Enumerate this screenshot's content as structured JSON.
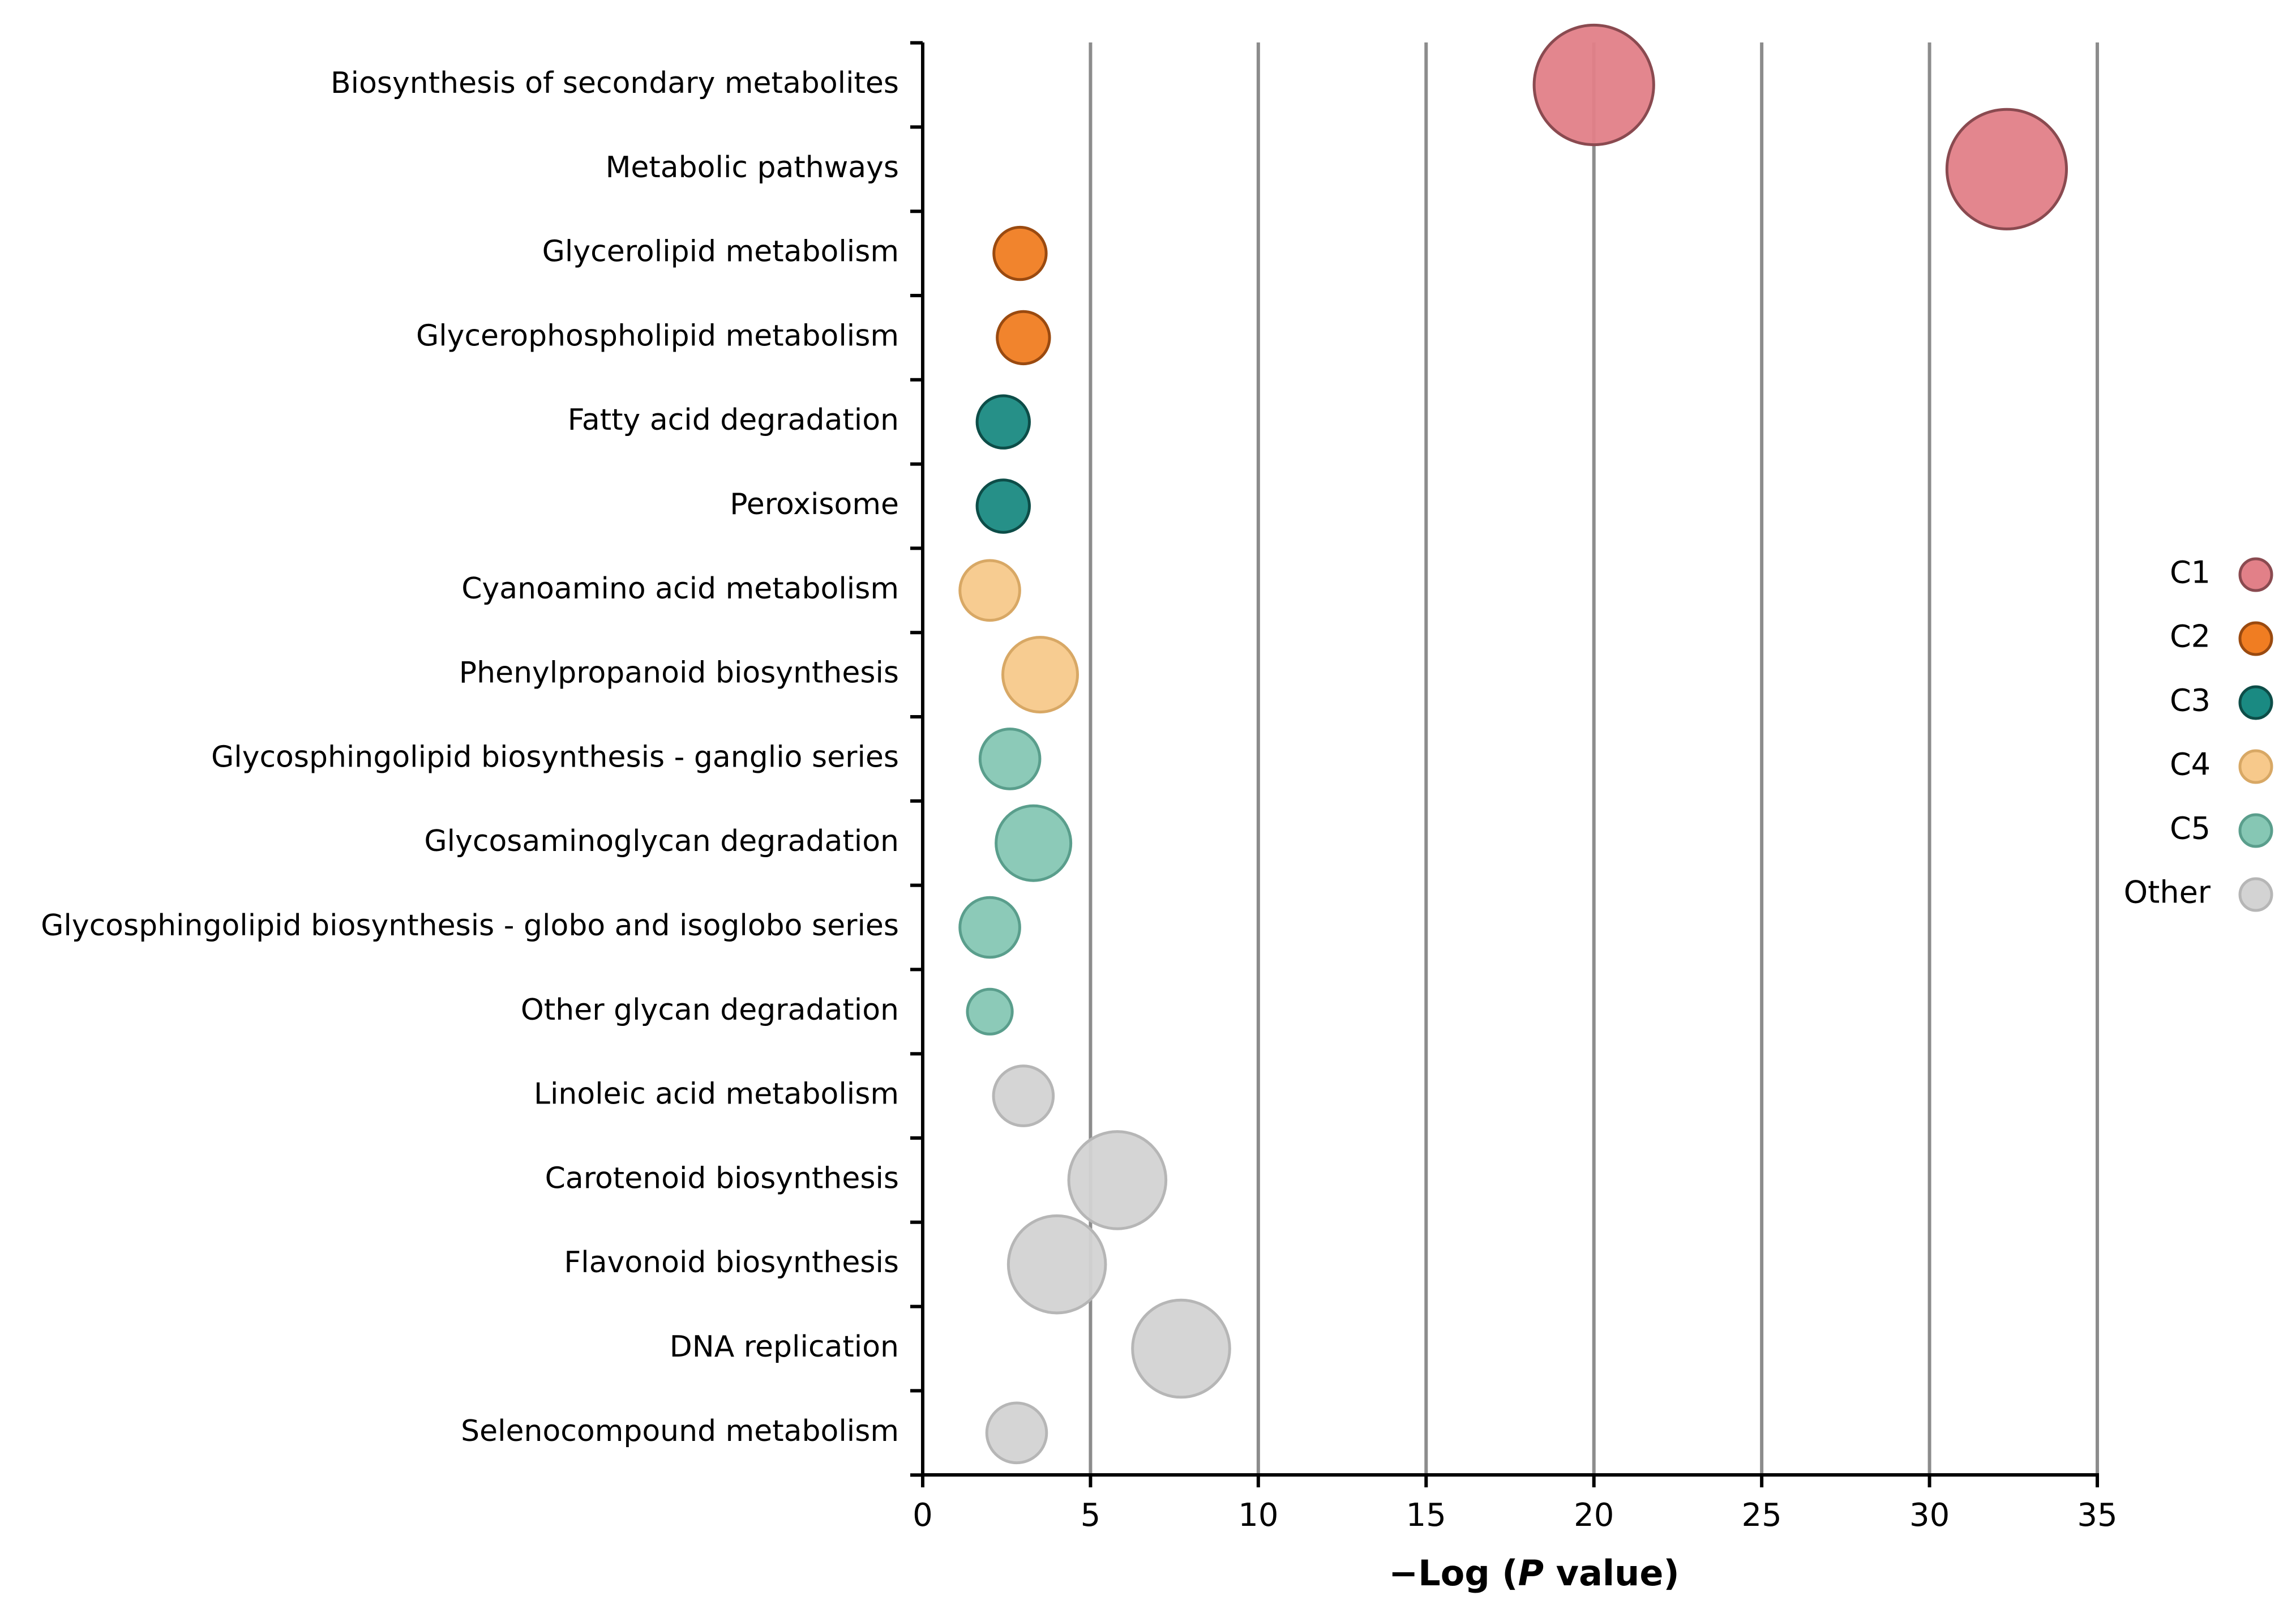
{
  "chart_data": {
    "type": "scatter",
    "title": "",
    "xlabel_prefix": "−Log (",
    "xlabel_italic": "P",
    "xlabel_suffix": " value)",
    "xlim": [
      0,
      35
    ],
    "xticks": [
      0,
      5,
      10,
      15,
      20,
      25,
      30,
      35
    ],
    "grid": "vertical lines at x = 5, 10, 15, 20, 25, 30, 35",
    "legend_placement": "right",
    "categories": [
      "Biosynthesis of secondary metabolites",
      "Metabolic pathways",
      "Glycerolipid metabolism",
      "Glycerophospholipid metabolism",
      "Fatty acid degradation",
      "Peroxisome",
      "Cyanoamino acid metabolism",
      "Phenylpropanoid biosynthesis",
      "Glycosphingolipid biosynthesis - ganglio series",
      "Glycosaminoglycan degradation",
      "Glycosphingolipid biosynthesis - globo and isoglobo series",
      "Other glycan degradation",
      "Linoleic acid metabolism",
      "Carotenoid biosynthesis",
      "Flavonoid biosynthesis",
      "DNA replication",
      "Selenocompound metabolism"
    ],
    "values": [
      20.0,
      32.3,
      2.9,
      3.0,
      2.4,
      2.4,
      2.0,
      3.5,
      2.6,
      3.3,
      2.0,
      2.0,
      3.0,
      5.8,
      4.0,
      7.7,
      2.8
    ],
    "groups": [
      "C1",
      "C1",
      "C2",
      "C2",
      "C3",
      "C3",
      "C4",
      "C4",
      "C5",
      "C5",
      "C5",
      "C5",
      "Other",
      "Other",
      "Other",
      "Other",
      "Other"
    ],
    "bubble_size_relative": [
      8,
      8,
      3.5,
      3.5,
      3.5,
      3.5,
      4,
      5,
      4,
      5,
      4,
      3,
      4,
      6.5,
      6.5,
      6.5,
      4
    ],
    "series": [
      {
        "name": "C1",
        "fill": "#e28088",
        "stroke": "#8a4a50"
      },
      {
        "name": "C2",
        "fill": "#f07d22",
        "stroke": "#9a4a10"
      },
      {
        "name": "C3",
        "fill": "#1a8a82",
        "stroke": "#0d4d48"
      },
      {
        "name": "C4",
        "fill": "#f7c98b",
        "stroke": "#d8a865"
      },
      {
        "name": "C5",
        "fill": "#86c7b4",
        "stroke": "#5a9e8c"
      },
      {
        "name": "Other",
        "fill": "#d3d3d3",
        "stroke": "#b6b6b6"
      }
    ]
  }
}
